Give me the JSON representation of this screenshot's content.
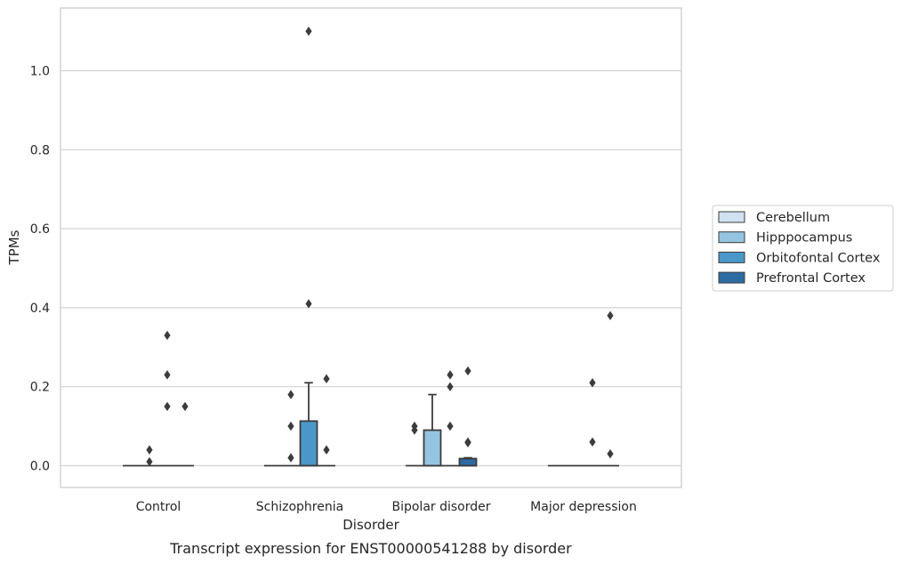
{
  "chart_data": {
    "type": "box",
    "title": "",
    "caption": "Transcript expression for ENST00000541288 by disorder",
    "xlabel": "Disorder",
    "ylabel": "TPMs",
    "ylim": [
      -0.055,
      1.165
    ],
    "yticks": [
      "0.0",
      "0.2",
      "0.4",
      "0.6",
      "0.8",
      "1.0"
    ],
    "grid": true,
    "legend_position": "right",
    "categories": [
      "Control",
      "Schizophrenia",
      "Bipolar disorder",
      "Major depression"
    ],
    "series": [
      {
        "name": "Cerebellum",
        "color": "#d0e1f2"
      },
      {
        "name": "Hipppocampus",
        "color": "#94c4df"
      },
      {
        "name": "Orbitofontal Cortex",
        "color": "#4a98c9"
      },
      {
        "name": "Prefrontal Cortex",
        "color": "#2d6ba3"
      }
    ],
    "boxes": [
      {
        "category": 0,
        "series": 0,
        "q1": 0,
        "median": 0,
        "q3": 0,
        "whisker_low": 0,
        "whisker_high": 0,
        "outliers": []
      },
      {
        "category": 0,
        "series": 1,
        "q1": 0,
        "median": 0,
        "q3": 0,
        "whisker_low": 0,
        "whisker_high": 0,
        "outliers": [
          0.04,
          0.01
        ]
      },
      {
        "category": 0,
        "series": 2,
        "q1": 0,
        "median": 0,
        "q3": 0,
        "whisker_low": 0,
        "whisker_high": 0,
        "outliers": [
          0.33,
          0.23,
          0.15
        ]
      },
      {
        "category": 0,
        "series": 3,
        "q1": 0,
        "median": 0,
        "q3": 0,
        "whisker_low": 0,
        "whisker_high": 0,
        "outliers": [
          0.15
        ]
      },
      {
        "category": 1,
        "series": 0,
        "q1": 0,
        "median": 0,
        "q3": 0,
        "whisker_low": 0,
        "whisker_high": 0,
        "outliers": []
      },
      {
        "category": 1,
        "series": 1,
        "q1": 0,
        "median": 0,
        "q3": 0,
        "whisker_low": 0,
        "whisker_high": 0,
        "outliers": [
          0.18,
          0.1,
          0.02
        ]
      },
      {
        "category": 1,
        "series": 2,
        "q1": 0,
        "median": 0,
        "q3": 0.113,
        "whisker_low": 0,
        "whisker_high": 0.21,
        "outliers": [
          1.1,
          0.41
        ]
      },
      {
        "category": 1,
        "series": 3,
        "q1": 0,
        "median": 0,
        "q3": 0,
        "whisker_low": 0,
        "whisker_high": 0,
        "outliers": [
          0.22,
          0.04
        ]
      },
      {
        "category": 2,
        "series": 0,
        "q1": 0,
        "median": 0,
        "q3": 0,
        "whisker_low": 0,
        "whisker_high": 0,
        "outliers": [
          0.1,
          0.09
        ]
      },
      {
        "category": 2,
        "series": 1,
        "q1": 0,
        "median": 0,
        "q3": 0.09,
        "whisker_low": 0,
        "whisker_high": 0.18,
        "outliers": []
      },
      {
        "category": 2,
        "series": 2,
        "q1": 0,
        "median": 0,
        "q3": 0,
        "whisker_low": 0,
        "whisker_high": 0,
        "outliers": [
          0.23,
          0.2,
          0.1
        ]
      },
      {
        "category": 2,
        "series": 3,
        "q1": 0,
        "median": 0,
        "q3": 0.018,
        "whisker_low": 0,
        "whisker_high": 0.02,
        "outliers": [
          0.24,
          0.06,
          0.058
        ]
      },
      {
        "category": 3,
        "series": 0,
        "q1": 0,
        "median": 0,
        "q3": 0,
        "whisker_low": 0,
        "whisker_high": 0,
        "outliers": []
      },
      {
        "category": 3,
        "series": 1,
        "q1": 0,
        "median": 0,
        "q3": 0,
        "whisker_low": 0,
        "whisker_high": 0,
        "outliers": []
      },
      {
        "category": 3,
        "series": 2,
        "q1": 0,
        "median": 0,
        "q3": 0,
        "whisker_low": 0,
        "whisker_high": 0,
        "outliers": [
          0.21,
          0.06
        ]
      },
      {
        "category": 3,
        "series": 3,
        "q1": 0,
        "median": 0,
        "q3": 0,
        "whisker_low": 0,
        "whisker_high": 0,
        "outliers": [
          0.38,
          0.03
        ]
      }
    ]
  }
}
